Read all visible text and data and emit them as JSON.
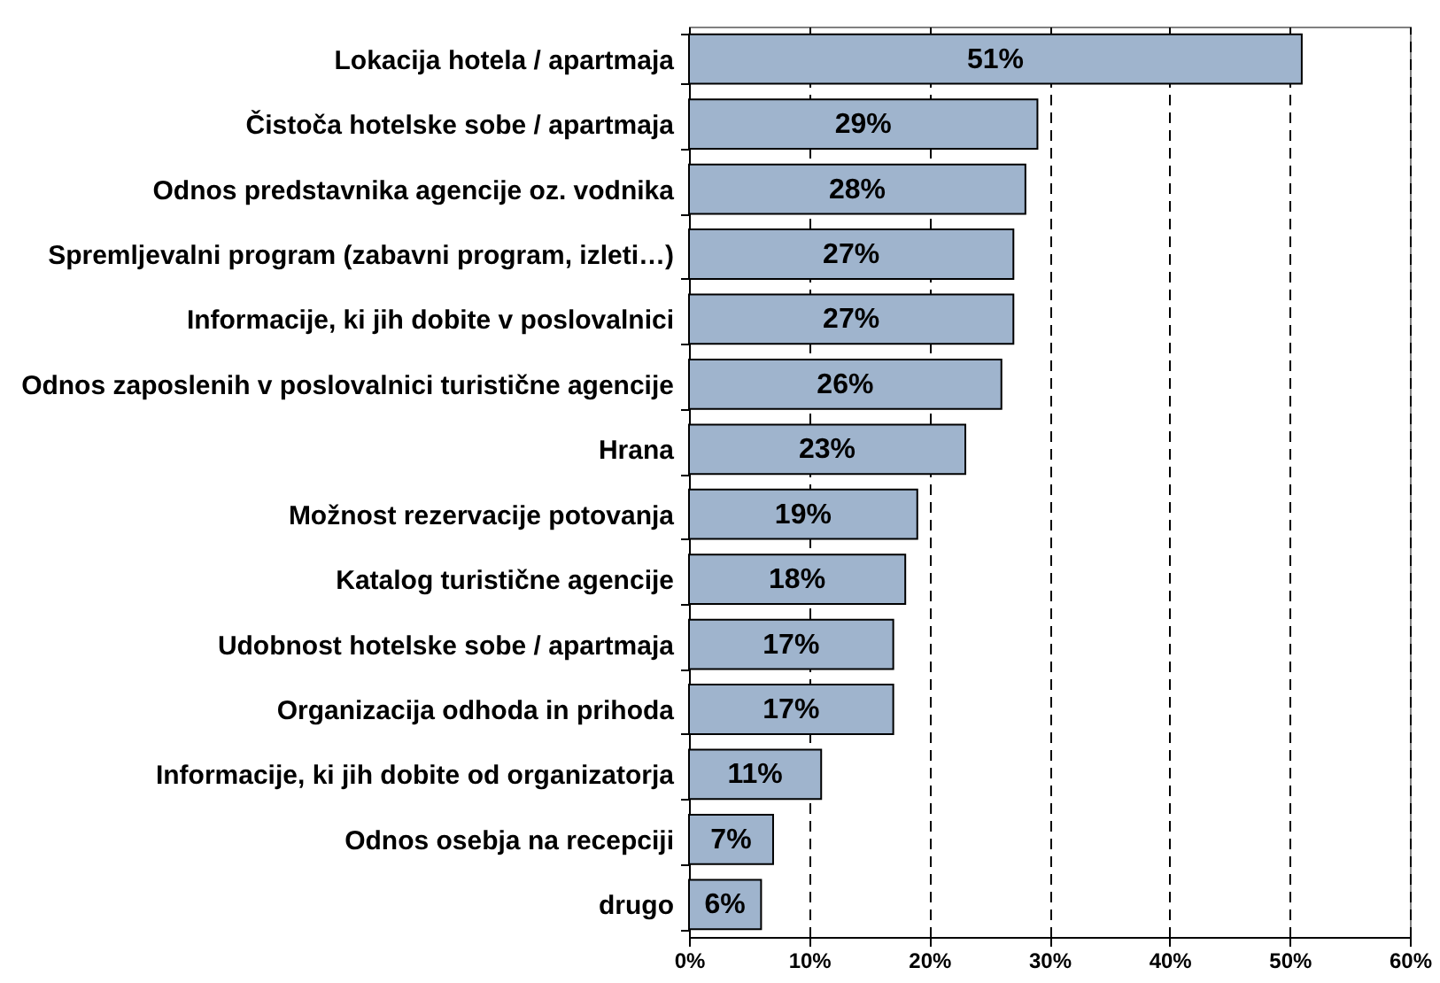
{
  "chart_data": {
    "type": "bar",
    "orientation": "horizontal",
    "categories": [
      "Lokacija hotela / apartmaja",
      "Čistoča hotelske sobe / apartmaja",
      "Odnos predstavnika agencije oz. vodnika",
      "Spremljevalni program (zabavni program, izleti…)",
      "Informacije, ki jih dobite v poslovalnici",
      "Odnos zaposlenih v poslovalnici turistične agencije",
      "Hrana",
      "Možnost rezervacije potovanja",
      "Katalog turistične agencije",
      "Udobnost hotelske sobe / apartmaja",
      "Organizacija odhoda in prihoda",
      "Informacije, ki jih dobite od organizatorja",
      "Odnos osebja na recepciji",
      "drugo"
    ],
    "values": [
      51,
      29,
      28,
      27,
      27,
      26,
      23,
      19,
      18,
      17,
      17,
      11,
      7,
      6
    ],
    "value_labels": [
      "51%",
      "29%",
      "28%",
      "27%",
      "27%",
      "26%",
      "23%",
      "19%",
      "18%",
      "17%",
      "17%",
      "11%",
      "7%",
      "6%"
    ],
    "color": "#9fb4cd",
    "xlim": [
      0,
      60
    ],
    "xticks": [
      {
        "value": 0,
        "label": "0%"
      },
      {
        "value": 10,
        "label": "10%"
      },
      {
        "value": 20,
        "label": "20%"
      },
      {
        "value": 30,
        "label": "30%"
      },
      {
        "value": 40,
        "label": "40%"
      },
      {
        "value": 50,
        "label": "50%"
      },
      {
        "value": 60,
        "label": "60%"
      }
    ],
    "grid": "x"
  }
}
